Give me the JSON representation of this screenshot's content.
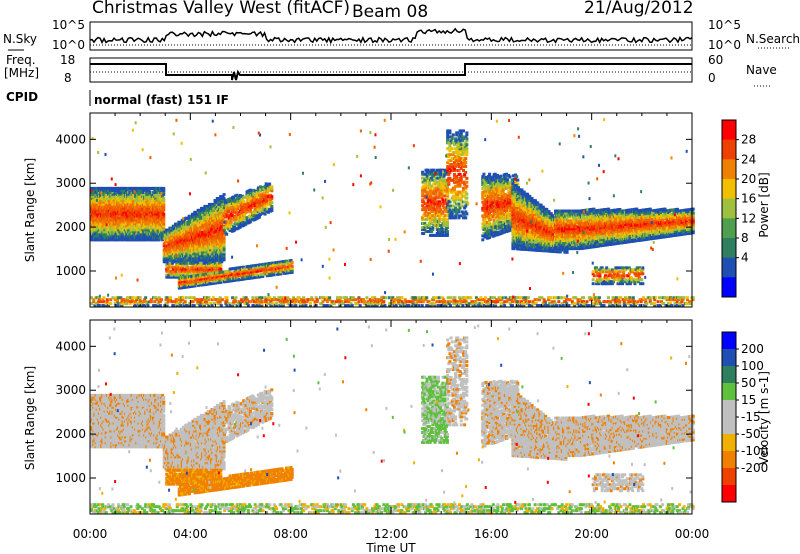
{
  "header": {
    "station": "Christmas Valley West (fitACF)",
    "beam": "Beam 08",
    "date": "21/Aug/2012"
  },
  "top_panel": {
    "left_label": "N.Sky",
    "left_ticks": [
      "10^5",
      "10^0"
    ],
    "right_label": "N.Search",
    "right_ticks": [
      "10^5",
      "10^0"
    ]
  },
  "freq_panel": {
    "left_label_1": "Freq.",
    "left_label_2": "[MHz]",
    "left_ticks": [
      "18",
      "8"
    ],
    "right_label": "Nave",
    "right_ticks": [
      "60",
      "0"
    ]
  },
  "cpid": {
    "label": "CPID",
    "value": "normal (fast) 151 IF"
  },
  "colors": {
    "power_scale": [
      "#0000ff",
      "#1f4fb3",
      "#2f7f5f",
      "#4f9f4f",
      "#9fbf3f",
      "#f0c000",
      "#f08000",
      "#f04000",
      "#ff0000"
    ],
    "velocity_scale": [
      "#ff0000",
      "#f04000",
      "#f08000",
      "#f0b000",
      "#c0c0c0",
      "#c0c0c0",
      "#5fbf3f",
      "#2f7f5f",
      "#1f4fb3",
      "#0000ff"
    ]
  },
  "chart_data": [
    {
      "type": "heatmap",
      "name": "power",
      "ylabel": "Slant Range [km]",
      "y_ticks": [
        "1000",
        "2000",
        "3000",
        "4000"
      ],
      "colorbar_label": "Power [dB]",
      "colorbar_ticks": [
        "28",
        "24",
        "20",
        "16",
        "12",
        "8",
        "4"
      ],
      "x_ticks": [
        "00:00",
        "04:00",
        "08:00",
        "12:00",
        "16:00",
        "20:00",
        "00:00"
      ],
      "xlim_hours": [
        0,
        24
      ],
      "ylim_km": [
        180,
        4600
      ]
    },
    {
      "type": "heatmap",
      "name": "velocity",
      "ylabel": "Slant Range [km]",
      "y_ticks": [
        "1000",
        "2000",
        "3000",
        "4000"
      ],
      "colorbar_label": "Velocity [m s-1]",
      "colorbar_ticks": [
        "200",
        "100",
        "50",
        "15",
        "-15",
        "-50",
        "-100",
        "-200"
      ],
      "x_ticks": [
        "00:00",
        "04:00",
        "08:00",
        "12:00",
        "16:00",
        "20:00",
        "00:00"
      ],
      "xlabel": "Time UT",
      "xlim_hours": [
        0,
        24
      ],
      "ylim_km": [
        180,
        4600
      ]
    }
  ]
}
